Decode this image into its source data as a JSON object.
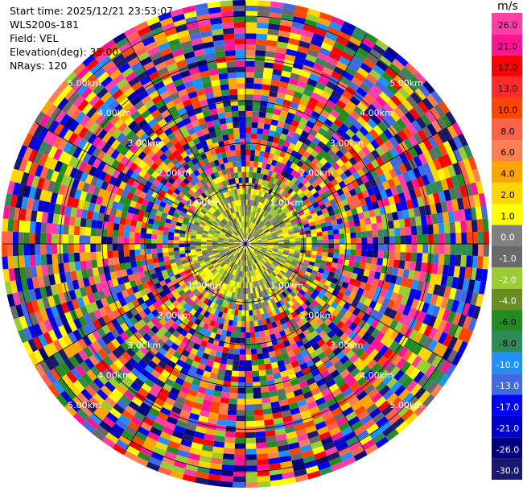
{
  "header": {
    "start_time": "Start time: 2025/12/21 23:53:07",
    "instrument": "WLS200s-181",
    "field": "Field: VEL",
    "elevation": "Elevation(deg): 35.00",
    "nrays": "NRays: 120"
  },
  "colorbar": {
    "unit": "m/s",
    "ticks": [
      "26.0",
      "21.0",
      "17.0",
      "13.0",
      "10.0",
      "8.0",
      "6.0",
      "4.0",
      "2.0",
      "1.0",
      "0.0",
      "-1.0",
      "-2.0",
      "-4.0",
      "-6.0",
      "-8.0",
      "-10.0",
      "-13.0",
      "-17.0",
      "-21.0",
      "-26.0",
      "-30.0"
    ],
    "colors": [
      "#ff3ea8",
      "#ff1493",
      "#ff0000",
      "#ff2a2a",
      "#ff4500",
      "#ff6347",
      "#ff7f50",
      "#ffa500",
      "#ffd700",
      "#ffff00",
      "#808080",
      "#696969",
      "#9acd32",
      "#6b8e23",
      "#228b22",
      "#2e8b57",
      "#1e90ff",
      "#4169e1",
      "#0000ff",
      "#0000cd",
      "#000080",
      "#191970"
    ]
  },
  "chart_data": {
    "type": "ppi",
    "field": "VEL",
    "unit": "m/s",
    "elevation_deg": 35.0,
    "nrays": 120,
    "range_rings_km": [
      1.0,
      2.0,
      3.0,
      4.0,
      5.0
    ],
    "ring_labels": [
      "1.00km",
      "2.00km",
      "3.00km",
      "4.00km",
      "5.00km"
    ],
    "value_range": [
      -30.0,
      26.0
    ]
  }
}
